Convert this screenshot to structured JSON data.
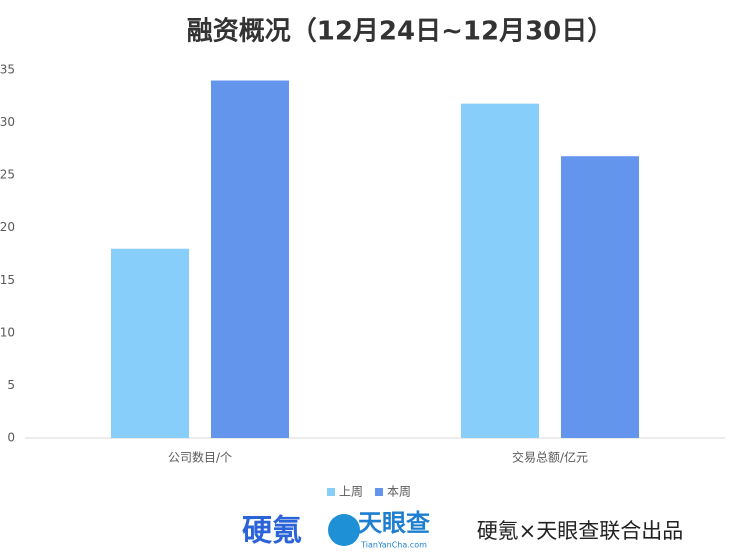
{
  "chart_data": {
    "type": "bar",
    "title": "融资概况（12月24日~12月30日）",
    "categories": [
      "公司数目/个",
      "交易总额/亿元"
    ],
    "series": [
      {
        "name": "上周",
        "color": "#87cefa",
        "values": [
          18,
          31.8
        ]
      },
      {
        "name": "本周",
        "color": "#6495ed",
        "values": [
          34,
          26.8
        ]
      }
    ],
    "ylim": [
      0,
      35
    ],
    "yticks": [
      0,
      5,
      10,
      15,
      20,
      25,
      30,
      35
    ],
    "grid": false,
    "legend": "bottom"
  },
  "branding": {
    "logo_left": "硬氪",
    "logo_right": "天眼查",
    "logo_right_sub": "TianYanCha.com",
    "credit": "硬氪×天眼查联合出品"
  }
}
